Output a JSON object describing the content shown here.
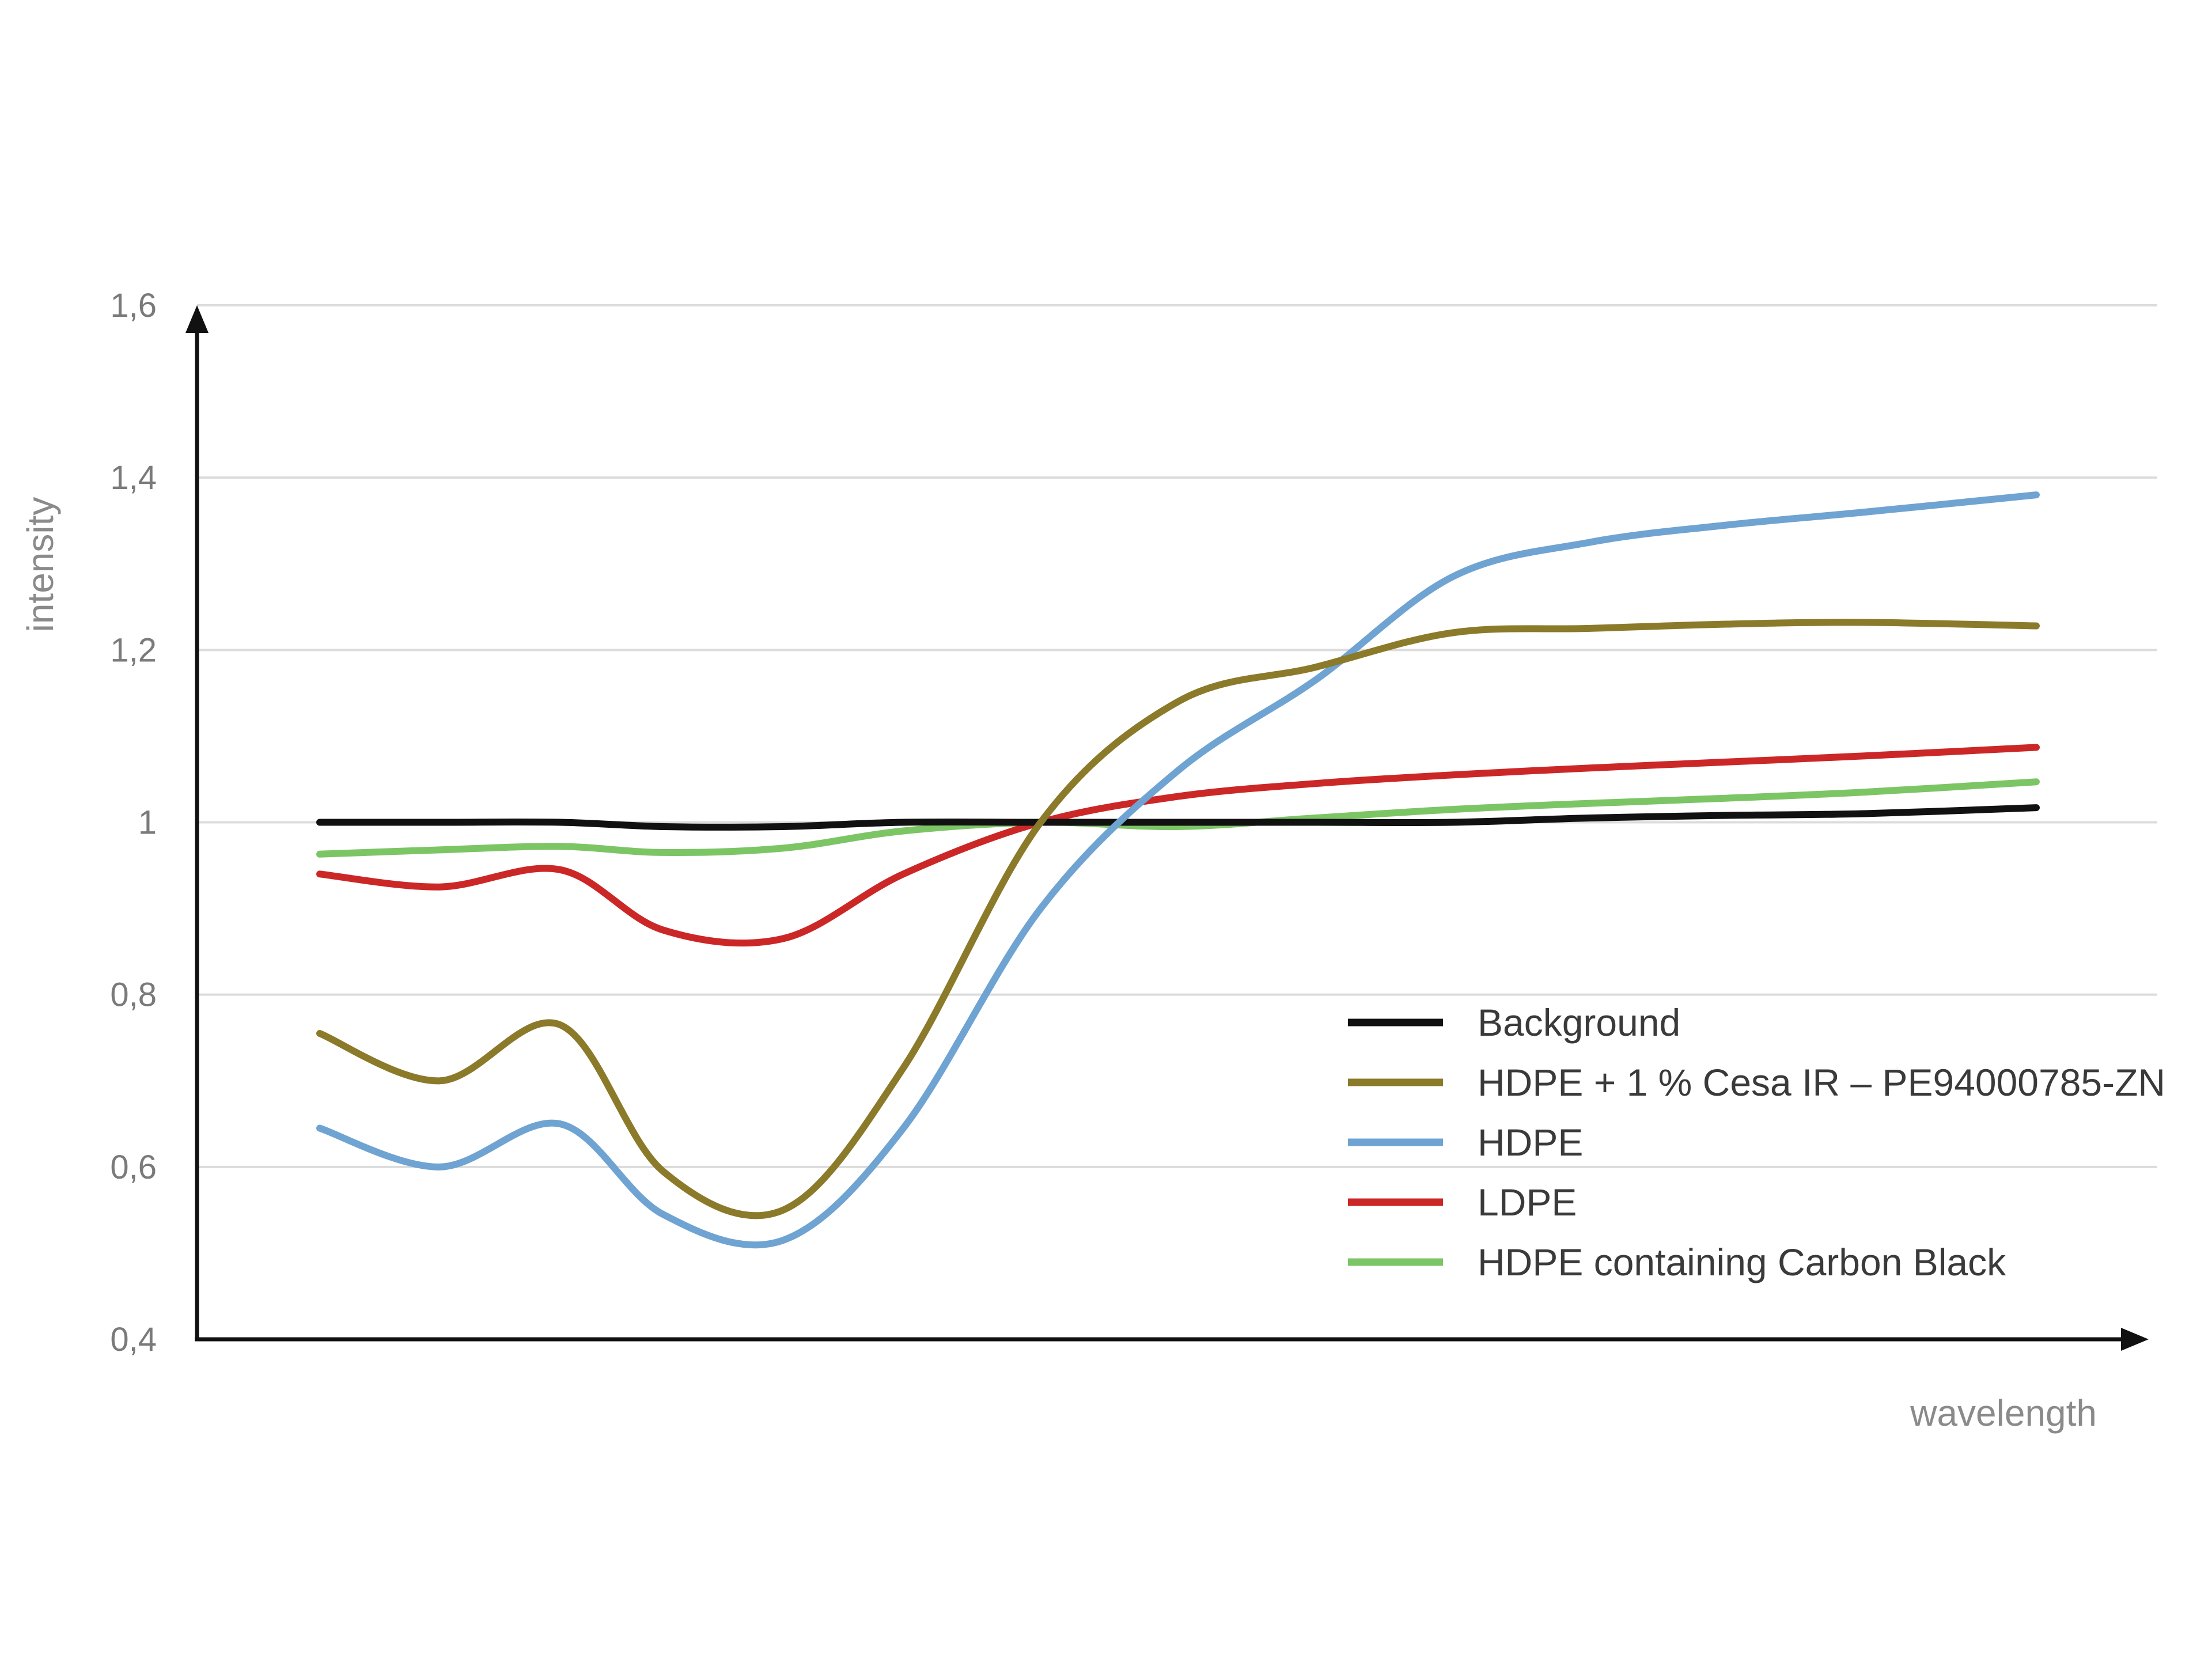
{
  "chart_data": {
    "type": "line",
    "title": "",
    "xlabel": "wavelength",
    "ylabel": "intensity",
    "ylim": [
      0.4,
      1.6
    ],
    "yticks": [
      "0,4",
      "0,6",
      "0,8",
      "1",
      "1,2",
      "1,4",
      "1,6"
    ],
    "ytick_values": [
      0.4,
      0.6,
      0.8,
      1.0,
      1.2,
      1.4,
      1.6
    ],
    "xlim": [
      0,
      100
    ],
    "grid": true,
    "legend_position": "bottom-right",
    "x": [
      0,
      7,
      14,
      20,
      27,
      34,
      42,
      50,
      58,
      66,
      74,
      82,
      90,
      100
    ],
    "series": [
      {
        "name": "Background",
        "color": "#111111",
        "values": [
          1.0,
          1.0,
          1.0,
          0.995,
          0.995,
          1.0,
          1.0,
          1.0,
          1.0,
          1.0,
          1.005,
          1.008,
          1.01,
          1.017
        ]
      },
      {
        "name": "HDPE + 1 % Cesa IR – PE94000785-ZN",
        "color": "#8b7a2a",
        "values": [
          0.755,
          0.7,
          0.765,
          0.595,
          0.55,
          0.715,
          1.0,
          1.14,
          1.18,
          1.22,
          1.225,
          1.23,
          1.232,
          1.228
        ]
      },
      {
        "name": "HDPE",
        "color": "#6fa3d2",
        "values": [
          0.645,
          0.6,
          0.65,
          0.545,
          0.515,
          0.645,
          0.9,
          1.06,
          1.165,
          1.285,
          1.325,
          1.345,
          1.36,
          1.38
        ]
      },
      {
        "name": "LDPE",
        "color": "#cc2727",
        "values": [
          0.94,
          0.925,
          0.945,
          0.875,
          0.865,
          0.94,
          1.0,
          1.03,
          1.045,
          1.055,
          1.063,
          1.07,
          1.077,
          1.087
        ]
      },
      {
        "name": "HDPE containing Carbon Black",
        "color": "#7cc565",
        "values": [
          0.963,
          0.968,
          0.972,
          0.965,
          0.97,
          0.99,
          1.0,
          0.995,
          1.005,
          1.015,
          1.022,
          1.028,
          1.035,
          1.047
        ]
      }
    ]
  }
}
